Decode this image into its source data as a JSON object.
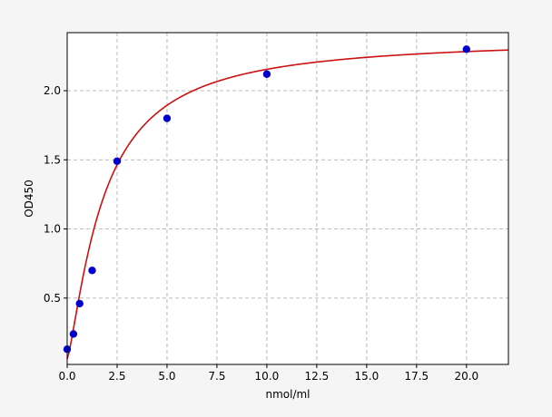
{
  "chart_data": {
    "type": "scatter",
    "title": "",
    "xlabel": "nmol/ml",
    "ylabel": "OD450",
    "xlim": [
      0,
      22.1
    ],
    "ylim": [
      0.02,
      2.42
    ],
    "xticks": [
      0.0,
      2.5,
      5.0,
      7.5,
      10.0,
      12.5,
      15.0,
      17.5,
      20.0
    ],
    "xtick_labels": [
      "0.0",
      "2.5",
      "5.0",
      "7.5",
      "10.0",
      "12.5",
      "15.0",
      "17.5",
      "20.0"
    ],
    "yticks": [
      0.5,
      1.0,
      1.5,
      2.0
    ],
    "ytick_labels": [
      "0.5",
      "1.0",
      "1.5",
      "2.0"
    ],
    "grid": true,
    "series": [
      {
        "kind": "points",
        "color": "#0000cc",
        "x": [
          0,
          0.313,
          0.625,
          1.25,
          2.5,
          5,
          10,
          20
        ],
        "y": [
          0.13,
          0.24,
          0.46,
          0.7,
          1.49,
          1.8,
          2.12,
          2.3
        ]
      },
      {
        "kind": "fit-curve",
        "color": "#cc1111",
        "model": "4PL",
        "params": {
          "a": 0.06,
          "b": 1.3,
          "c": 1.8,
          "d": 2.38
        }
      }
    ]
  }
}
